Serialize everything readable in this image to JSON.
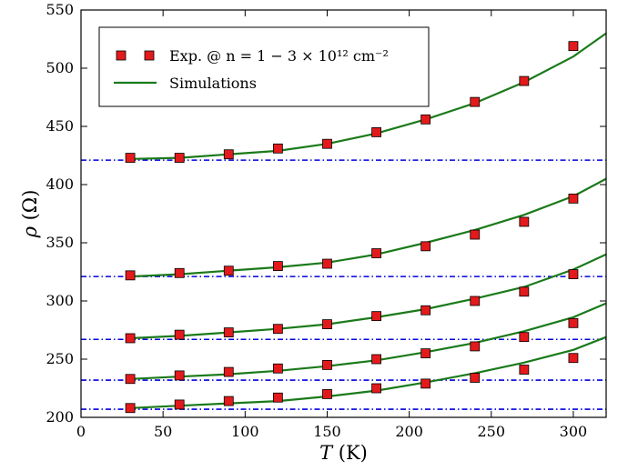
{
  "chart_data": {
    "type": "scatter",
    "xlim": [
      0,
      320
    ],
    "ylim": [
      200,
      550
    ],
    "xticks": [
      0,
      50,
      100,
      150,
      200,
      250,
      300
    ],
    "yticks": [
      200,
      250,
      300,
      350,
      400,
      450,
      500,
      550
    ],
    "xlabel": "T (K)",
    "ylabel": "ρ (Ω)",
    "grid": false,
    "legend_position": "top-left",
    "legend": [
      {
        "label": "Exp. @ n = 1 − 3 × 10¹² cm⁻²",
        "marker": "square",
        "color": "#e31a1c"
      },
      {
        "label": "Simulations",
        "marker": "line",
        "color": "#1a7a1a"
      }
    ],
    "colors": {
      "experiment": "#e31a1c",
      "simulation": "#1a7a1a",
      "baseline": "#0000dd"
    },
    "experiment_x": [
      30,
      60,
      90,
      120,
      150,
      180,
      210,
      240,
      270,
      300
    ],
    "experiment_series": [
      {
        "values": [
          423,
          423,
          426,
          431,
          435,
          445,
          456,
          471,
          489,
          519
        ]
      },
      {
        "values": [
          322,
          324,
          326,
          330,
          332,
          341,
          347,
          357,
          368,
          388
        ]
      },
      {
        "values": [
          268,
          271,
          273,
          276,
          280,
          287,
          292,
          300,
          308,
          323
        ]
      },
      {
        "values": [
          233,
          236,
          239,
          242,
          245,
          250,
          255,
          261,
          269,
          281
        ]
      },
      {
        "values": [
          208,
          211,
          214,
          217,
          220,
          225,
          229,
          234,
          241,
          251
        ]
      }
    ],
    "simulation_x": [
      30,
      60,
      90,
      120,
      150,
      180,
      210,
      240,
      270,
      300,
      320
    ],
    "simulation_series": [
      {
        "values": [
          422,
          423,
          426,
          429,
          435,
          444,
          456,
          470,
          488,
          510,
          530
        ]
      },
      {
        "values": [
          321,
          323,
          326,
          329,
          333,
          340,
          350,
          361,
          374,
          390,
          405
        ]
      },
      {
        "values": [
          268,
          270,
          273,
          276,
          280,
          286,
          293,
          302,
          312,
          327,
          340
        ]
      },
      {
        "values": [
          233,
          235,
          237,
          240,
          244,
          249,
          256,
          264,
          274,
          286,
          298
        ]
      },
      {
        "values": [
          208,
          210,
          212,
          214,
          218,
          223,
          230,
          238,
          247,
          258,
          269
        ]
      }
    ],
    "baselines": [
      421,
      321,
      267,
      232,
      207
    ]
  }
}
